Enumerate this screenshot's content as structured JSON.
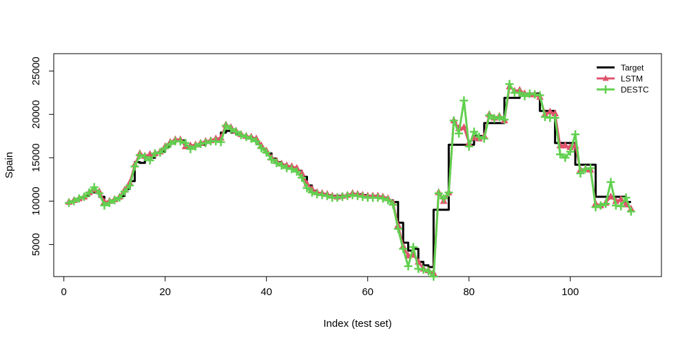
{
  "chart_data": {
    "type": "line",
    "title": "",
    "xlabel": "Index (test set)",
    "ylabel": "Spain",
    "xlim": [
      -2,
      118
    ],
    "ylim": [
      1300,
      27000
    ],
    "xticks": [
      0,
      20,
      40,
      60,
      80,
      100
    ],
    "yticks": [
      5000,
      10000,
      15000,
      20000,
      25000
    ],
    "grid": false,
    "legend_position": "top-right",
    "series": [
      {
        "name": "Target",
        "color": "#000000",
        "marker": "none",
        "step": true,
        "x": [
          1,
          2,
          3,
          4,
          5,
          6,
          7,
          8,
          9,
          10,
          11,
          12,
          13,
          14,
          15,
          16,
          17,
          18,
          19,
          20,
          21,
          22,
          23,
          24,
          25,
          26,
          27,
          28,
          29,
          30,
          31,
          32,
          33,
          34,
          35,
          36,
          37,
          38,
          39,
          40,
          41,
          42,
          43,
          44,
          45,
          46,
          47,
          48,
          49,
          50,
          51,
          52,
          53,
          54,
          55,
          56,
          57,
          58,
          59,
          60,
          61,
          62,
          63,
          64,
          65,
          66,
          67,
          68,
          69,
          70,
          71,
          72,
          73,
          74,
          75,
          76,
          77,
          78,
          79,
          80,
          81,
          82,
          83,
          84,
          85,
          86,
          87,
          88,
          89,
          90,
          91,
          92,
          93,
          94,
          95,
          96,
          97,
          98,
          99,
          100,
          101,
          102,
          103,
          104,
          105,
          106,
          107,
          108,
          109,
          110,
          111,
          112
        ],
        "values": [
          9900,
          10100,
          10300,
          10600,
          11000,
          11200,
          10500,
          9800,
          10100,
          10300,
          10600,
          11400,
          12300,
          14500,
          14400,
          15200,
          15000,
          15600,
          15700,
          16300,
          16700,
          16900,
          17000,
          16200,
          16300,
          16400,
          16500,
          16800,
          16900,
          17100,
          17900,
          18100,
          17900,
          17700,
          17500,
          17300,
          17100,
          16600,
          16000,
          15500,
          14900,
          14500,
          14200,
          14000,
          13900,
          13500,
          12800,
          11800,
          11200,
          10900,
          10800,
          10700,
          10600,
          10600,
          10600,
          10700,
          10800,
          10800,
          10700,
          10600,
          10600,
          10500,
          10400,
          10100,
          9900,
          7500,
          5200,
          4300,
          4500,
          3000,
          2600,
          2400,
          9000,
          9000,
          9000,
          16500,
          16500,
          16500,
          16500,
          16500,
          17500,
          17500,
          19000,
          19000,
          19000,
          19000,
          21900,
          21900,
          21900,
          22400,
          22400,
          22400,
          22400,
          20400,
          20400,
          20400,
          16700,
          16700,
          16700,
          16700,
          14200,
          14200,
          14200,
          14200,
          10500,
          10500,
          10500,
          10500,
          10500,
          10500,
          9900,
          9900
        ]
      },
      {
        "name": "LSTM",
        "color": "#DF536B",
        "marker": "triangle",
        "step": false,
        "x": [
          1,
          2,
          3,
          4,
          5,
          6,
          7,
          8,
          9,
          10,
          11,
          12,
          13,
          14,
          15,
          16,
          17,
          18,
          19,
          20,
          21,
          22,
          23,
          24,
          25,
          26,
          27,
          28,
          29,
          30,
          31,
          32,
          33,
          34,
          35,
          36,
          37,
          38,
          39,
          40,
          41,
          42,
          43,
          44,
          45,
          46,
          47,
          48,
          49,
          50,
          51,
          52,
          53,
          54,
          55,
          56,
          57,
          58,
          59,
          60,
          61,
          62,
          63,
          64,
          65,
          66,
          67,
          68,
          69,
          70,
          71,
          72,
          73,
          74,
          75,
          76,
          77,
          78,
          79,
          80,
          81,
          82,
          83,
          84,
          85,
          86,
          87,
          88,
          89,
          90,
          91,
          92,
          93,
          94,
          95,
          96,
          97,
          98,
          99,
          100,
          101,
          102,
          103,
          104,
          105,
          106,
          107,
          108,
          109,
          110,
          111,
          112
        ],
        "values": [
          9900,
          10100,
          10300,
          10500,
          11000,
          11300,
          11100,
          9900,
          10000,
          10200,
          10500,
          11300,
          12100,
          14200,
          15500,
          15200,
          15400,
          15500,
          15700,
          16300,
          16800,
          17100,
          17100,
          16300,
          16400,
          16500,
          16700,
          16900,
          17000,
          17200,
          17300,
          18800,
          18500,
          18100,
          17700,
          17500,
          17400,
          17200,
          16400,
          15800,
          15000,
          14600,
          14300,
          14100,
          14000,
          13800,
          13200,
          12000,
          11400,
          11000,
          10900,
          10800,
          10600,
          10500,
          10600,
          10700,
          10900,
          10800,
          10700,
          10600,
          10600,
          10600,
          10500,
          10300,
          9800,
          7200,
          4800,
          3700,
          3800,
          3000,
          2200,
          2000,
          1700,
          11000,
          10000,
          11000,
          19300,
          18400,
          18500,
          16700,
          17300,
          17200,
          17500,
          20000,
          19600,
          19800,
          19300,
          23200,
          22700,
          22800,
          22400,
          22300,
          22300,
          22000,
          20000,
          20300,
          20100,
          16400,
          16400,
          16200,
          16400,
          13600,
          13700,
          13600,
          9700,
          9500,
          9800,
          10500,
          10000,
          10200,
          9600,
          9100
        ]
      },
      {
        "name": "DESTC",
        "color": "#61D04F",
        "marker": "plus",
        "step": false,
        "x": [
          1,
          2,
          3,
          4,
          5,
          6,
          7,
          8,
          9,
          10,
          11,
          12,
          13,
          14,
          15,
          16,
          17,
          18,
          19,
          20,
          21,
          22,
          23,
          24,
          25,
          26,
          27,
          28,
          29,
          30,
          31,
          32,
          33,
          34,
          35,
          36,
          37,
          38,
          39,
          40,
          41,
          42,
          43,
          44,
          45,
          46,
          47,
          48,
          49,
          50,
          51,
          52,
          53,
          54,
          55,
          56,
          57,
          58,
          59,
          60,
          61,
          62,
          63,
          64,
          65,
          66,
          67,
          68,
          69,
          70,
          71,
          72,
          73,
          74,
          75,
          76,
          77,
          78,
          79,
          80,
          81,
          82,
          83,
          84,
          85,
          86,
          87,
          88,
          89,
          90,
          91,
          92,
          93,
          94,
          95,
          96,
          97,
          98,
          99,
          100,
          101,
          102,
          103,
          104,
          105,
          106,
          107,
          108,
          109,
          110,
          111,
          112
        ],
        "values": [
          9800,
          10000,
          10300,
          10500,
          11000,
          11600,
          10900,
          9500,
          9800,
          10100,
          10400,
          11100,
          11800,
          14000,
          15300,
          15100,
          14700,
          15500,
          15600,
          16100,
          16600,
          16900,
          16900,
          16700,
          16000,
          16300,
          16600,
          16700,
          16900,
          16900,
          16800,
          18700,
          18300,
          18000,
          17600,
          17400,
          17200,
          16900,
          16100,
          15600,
          14800,
          14400,
          14100,
          13800,
          13700,
          13400,
          12700,
          11500,
          11000,
          10800,
          10700,
          10600,
          10400,
          10400,
          10500,
          10600,
          10700,
          10600,
          10500,
          10400,
          10400,
          10400,
          10300,
          10100,
          9600,
          6800,
          4500,
          2500,
          4700,
          2200,
          2100,
          1900,
          1300,
          10900,
          10300,
          11000,
          19300,
          17800,
          21600,
          16300,
          18000,
          17400,
          17200,
          19900,
          19500,
          19700,
          19400,
          23500,
          22500,
          22500,
          22100,
          22400,
          22300,
          22200,
          19700,
          19600,
          19600,
          15400,
          15000,
          15700,
          17700,
          13200,
          13700,
          13800,
          9300,
          9500,
          9700,
          12200,
          9500,
          9400,
          10400,
          8800
        ]
      }
    ]
  }
}
